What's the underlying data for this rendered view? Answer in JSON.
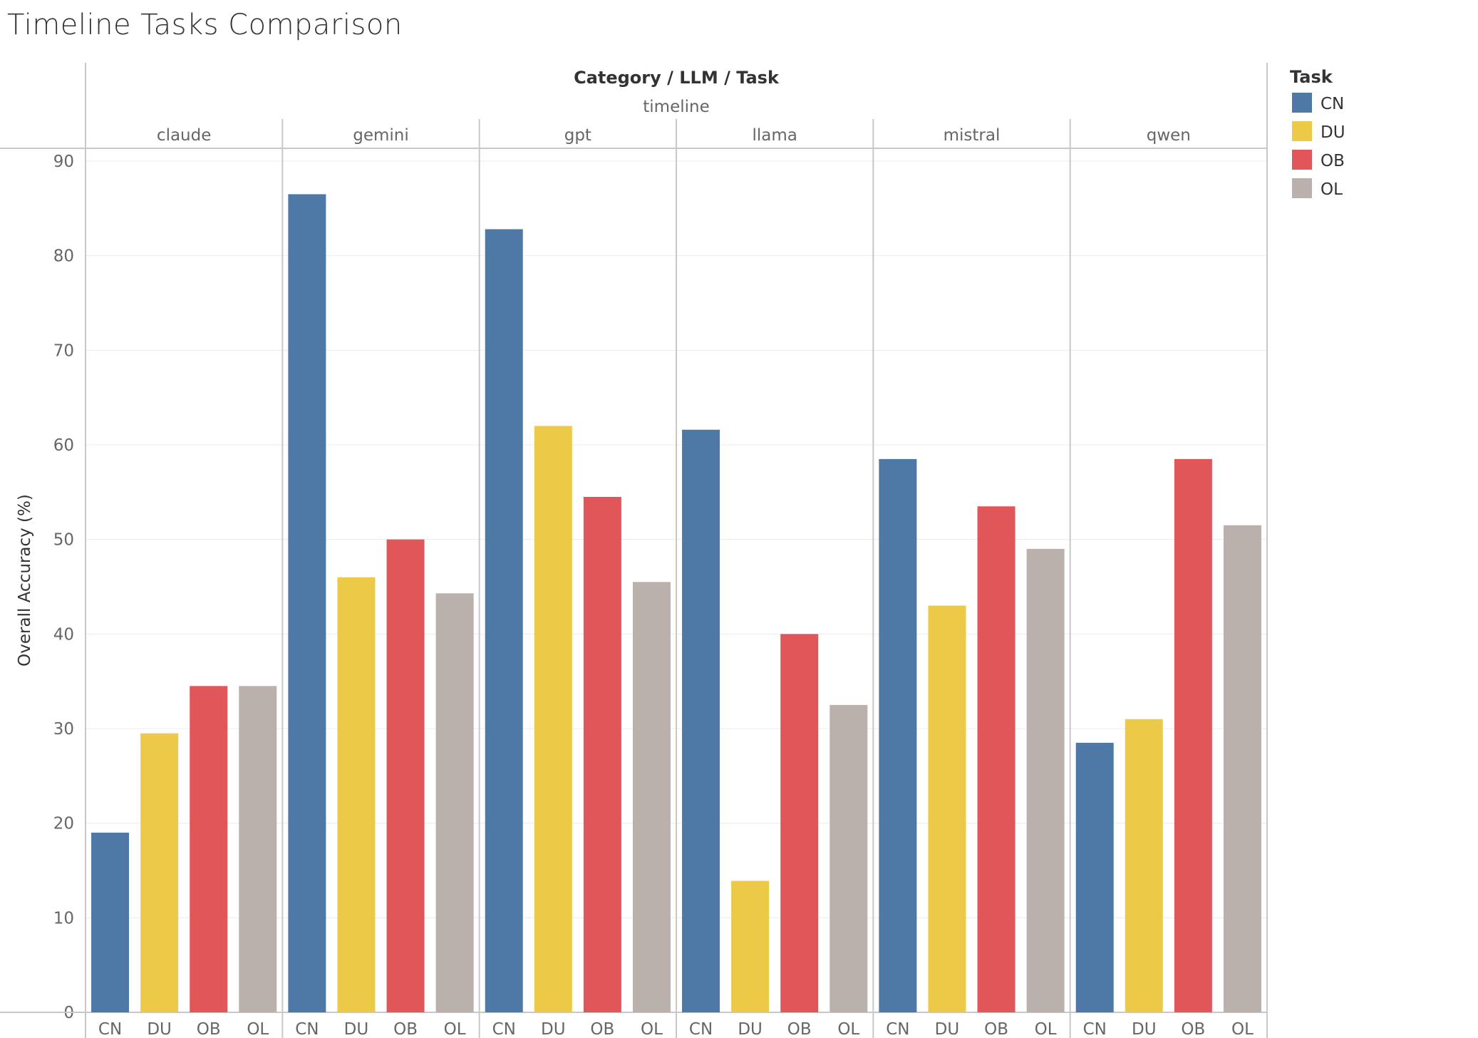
{
  "title": "Timeline Tasks Comparison",
  "chart_data": {
    "type": "bar",
    "header": "Category / LLM / Task",
    "category": "timeline",
    "ylabel": "Overall Accuracy (%)",
    "ylim": [
      0,
      90
    ],
    "yticks": [
      0,
      10,
      20,
      30,
      40,
      50,
      60,
      70,
      80,
      90
    ],
    "grid": true,
    "legend_title": "Task",
    "legend_position": "top-right",
    "tasks": [
      "CN",
      "DU",
      "OB",
      "OL"
    ],
    "colors": {
      "CN": "#4E79A7",
      "DU": "#EDC948",
      "OB": "#E15759",
      "OL": "#BAB0AC"
    },
    "panels": [
      {
        "llm": "claude",
        "values": [
          19.0,
          29.5,
          34.5,
          34.5
        ]
      },
      {
        "llm": "gemini",
        "values": [
          86.5,
          46.0,
          50.0,
          44.3
        ]
      },
      {
        "llm": "gpt",
        "values": [
          82.8,
          62.0,
          54.5,
          45.5
        ]
      },
      {
        "llm": "llama",
        "values": [
          61.6,
          13.9,
          40.0,
          32.5
        ]
      },
      {
        "llm": "mistral",
        "values": [
          58.5,
          43.0,
          53.5,
          49.0
        ]
      },
      {
        "llm": "qwen",
        "values": [
          28.5,
          31.0,
          58.5,
          51.5
        ]
      }
    ]
  }
}
